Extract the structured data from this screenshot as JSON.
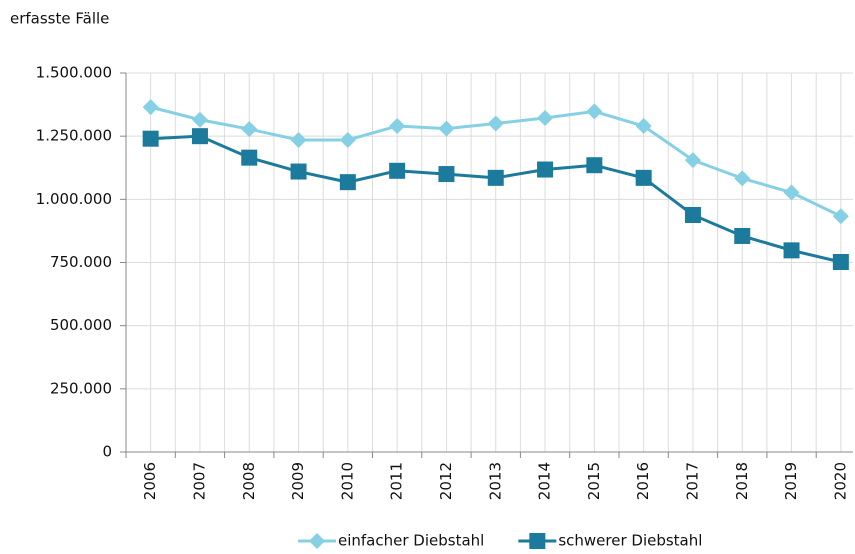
{
  "chart_data": {
    "type": "line",
    "y_axis_label": "erfasste Fälle",
    "categories": [
      "2006",
      "2007",
      "2008",
      "2009",
      "2010",
      "2011",
      "2012",
      "2013",
      "2014",
      "2015",
      "2016",
      "2017",
      "2018",
      "2019",
      "2020"
    ],
    "series": [
      {
        "name": "einfacher Diebstahl",
        "color": "#86d0e6",
        "marker": "diamond",
        "values": [
          1365000,
          1315000,
          1278000,
          1235000,
          1235000,
          1290000,
          1280000,
          1300000,
          1322000,
          1348000,
          1290000,
          1155000,
          1083000,
          1027000,
          933000
        ]
      },
      {
        "name": "schwerer Diebstahl",
        "color": "#1c7a9c",
        "marker": "square",
        "values": [
          1240000,
          1250000,
          1165000,
          1110000,
          1068000,
          1113000,
          1100000,
          1085000,
          1118000,
          1135000,
          1085000,
          938000,
          855000,
          798000,
          752000
        ]
      }
    ],
    "ylim": [
      0,
      1500000
    ],
    "yticks": [
      0,
      {
        "value": 250000,
        "label": "250.000"
      },
      {
        "value": 500000,
        "label": "500.000"
      },
      {
        "value": 750000,
        "label": "750.000"
      },
      {
        "value": 1000000,
        "label": "1.000.000"
      },
      {
        "value": 1250000,
        "label": "1.250.000"
      },
      {
        "value": 1500000,
        "label": "1.500.000"
      }
    ],
    "grid": true,
    "legend": "bottom"
  }
}
